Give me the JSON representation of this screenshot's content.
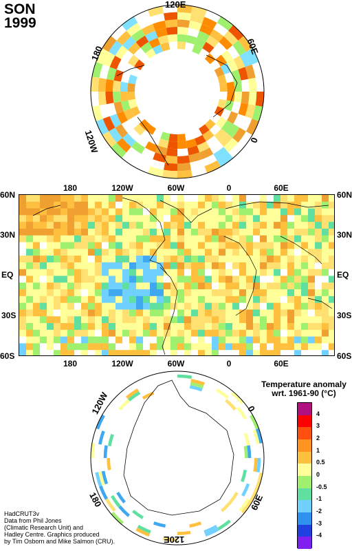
{
  "title": {
    "season": "SON",
    "year": "1999"
  },
  "north_polar": {
    "labels": [
      "120E",
      "180",
      "60E",
      "0",
      "120W"
    ],
    "colors": [
      "#f0a030",
      "#ffe070",
      "#ffff99",
      "#a0f070",
      "#ff8c00",
      "#ffffff",
      "#ffffff",
      "#80e0ff",
      "#ffc040",
      "#ee5500"
    ]
  },
  "main_map": {
    "top_ticks": [
      "180",
      "120W",
      "60W",
      "0",
      "60E"
    ],
    "bottom_ticks": [
      "180",
      "120W",
      "60W",
      "0",
      "60E"
    ],
    "left_ticks": [
      "60N",
      "30N",
      "EQ",
      "30S",
      "60S"
    ],
    "right_ticks": [
      "60N",
      "30N",
      "EQ",
      "30S",
      "60S"
    ],
    "colors": [
      "#ffff99",
      "#ffe070",
      "#ffc040",
      "#f0a030",
      "#ff8c00",
      "#a0f070",
      "#60e0a0",
      "#70d0ff",
      "#40a8f0",
      "#ffffff",
      "#ee5500",
      "#2040d0"
    ]
  },
  "south_polar": {
    "labels": [
      "120W",
      "0",
      "180",
      "60E",
      "120E"
    ],
    "colors": [
      "#ffff99",
      "#a0f070",
      "#60e0a0",
      "#70d0ff",
      "#40a8f0",
      "#ffe070",
      "#ffc040",
      "#ffffff",
      "#ffffff",
      "#ffffff"
    ]
  },
  "legend": {
    "title_line1": "Temperature anomaly",
    "title_line2": "wrt. 1961-90  (°C)",
    "bins": [
      {
        "label": "4",
        "color": "#b01080"
      },
      {
        "label": "3",
        "color": "#ff0000"
      },
      {
        "label": "2",
        "color": "#ff5010"
      },
      {
        "label": "1",
        "color": "#ff9420"
      },
      {
        "label": "0.5",
        "color": "#ffc040"
      },
      {
        "label": "0",
        "color": "#ffff99"
      },
      {
        "label": "-0.5",
        "color": "#a0f070"
      },
      {
        "label": "-1",
        "color": "#60e0a0"
      },
      {
        "label": "-2",
        "color": "#70d0ff"
      },
      {
        "label": "-3",
        "color": "#3090f0"
      },
      {
        "label": "-4",
        "color": "#2040e0"
      },
      {
        "label": "",
        "color": "#8020f0"
      }
    ]
  },
  "credits": [
    "HadCRUT3v",
    "Data from Phil Jones",
    "(Climatic Research Unit) and",
    "Hadley Centre.  Graphics produced",
    "by Tim Osborn and Mike Salmon (CRU)."
  ]
}
